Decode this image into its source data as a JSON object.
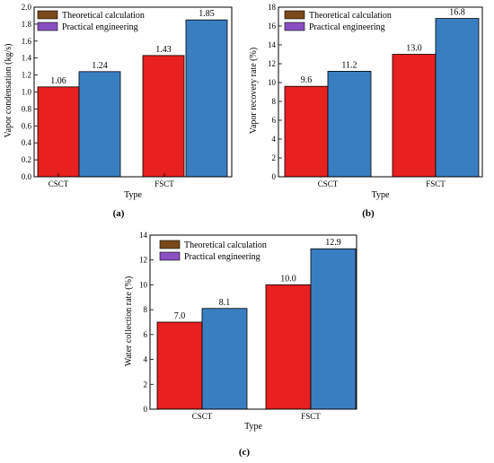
{
  "colors": {
    "theoretical_bar": "#e8201f",
    "theoretical_legend": "#7b4a1a",
    "practical_bar": "#3a7ec2",
    "practical_legend": "#8a4fc1"
  },
  "legend": {
    "theoretical": "Theoretical calculation",
    "practical": "Practical engineering"
  },
  "chart_data": [
    {
      "panel_label": "(a)",
      "type": "bar",
      "categories": [
        "CSCT",
        "FSCT"
      ],
      "series": [
        {
          "name": "Theoretical calculation",
          "values": [
            1.06,
            1.43
          ],
          "labels": [
            "1.06",
            "1.43"
          ]
        },
        {
          "name": "Practical engineering",
          "values": [
            1.24,
            1.85
          ],
          "labels": [
            "1.24",
            "1.85"
          ]
        }
      ],
      "xlabel": "Type",
      "ylabel": "Vapor condensation (kg/s)",
      "ylim": [
        0,
        2.0
      ],
      "yticks": [
        "0.0",
        "0.2",
        "0.4",
        "0.6",
        "0.8",
        "1.0",
        "1.2",
        "1.4",
        "1.6",
        "1.8",
        "2.0"
      ],
      "legend_position": "top-left",
      "grid": false
    },
    {
      "panel_label": "(b)",
      "type": "bar",
      "categories": [
        "CSCT",
        "FSCT"
      ],
      "series": [
        {
          "name": "Theoretical calculation",
          "values": [
            9.6,
            13.0
          ],
          "labels": [
            "9.6",
            "13.0"
          ]
        },
        {
          "name": "Practical engineering",
          "values": [
            11.2,
            16.8
          ],
          "labels": [
            "11.2",
            "16.8"
          ]
        }
      ],
      "xlabel": "Type",
      "ylabel": "Vapor recovery rate (%)",
      "ylim": [
        0,
        18
      ],
      "yticks": [
        "0",
        "2",
        "4",
        "6",
        "8",
        "10",
        "12",
        "14",
        "16",
        "18"
      ],
      "legend_position": "top-left",
      "grid": false
    },
    {
      "panel_label": "(c)",
      "type": "bar",
      "categories": [
        "CSCT",
        "FSCT"
      ],
      "series": [
        {
          "name": "Theoretical calculation",
          "values": [
            7.0,
            10.0
          ],
          "labels": [
            "7.0",
            "10.0"
          ]
        },
        {
          "name": "Practical engineering",
          "values": [
            8.1,
            12.9
          ],
          "labels": [
            "8.1",
            "12.9"
          ]
        }
      ],
      "xlabel": "Type",
      "ylabel": "Water collection rate (%)",
      "ylim": [
        0,
        14
      ],
      "yticks": [
        "0",
        "2",
        "4",
        "6",
        "8",
        "10",
        "12",
        "14"
      ],
      "legend_position": "top-left",
      "grid": false
    }
  ]
}
